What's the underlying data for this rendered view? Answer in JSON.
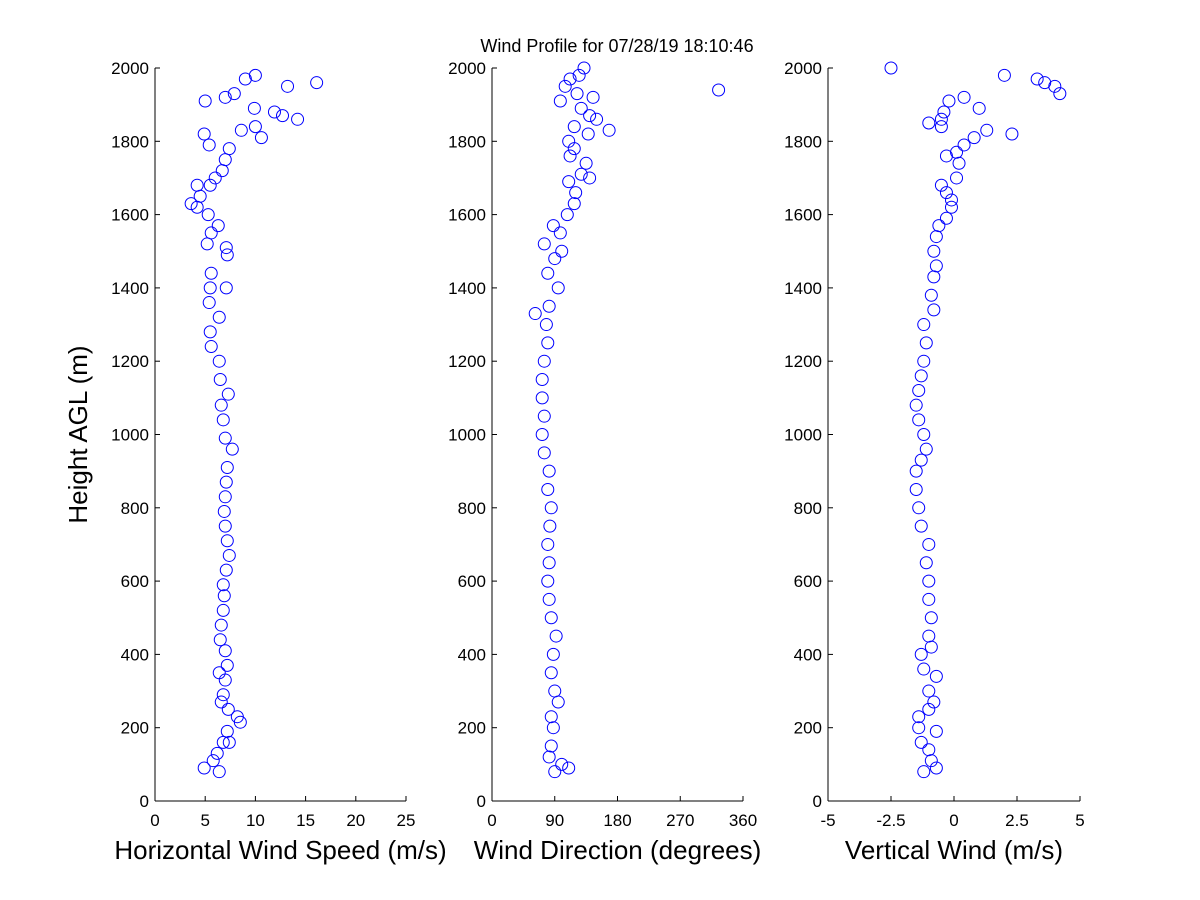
{
  "chart_data": [
    {
      "type": "scatter",
      "title": "Wind Profile for  07/28/19 18:10:46",
      "xlabel": "Horizontal Wind Speed (m/s)",
      "ylabel": "Height AGL (m)",
      "xlim": [
        0,
        25
      ],
      "xticks": [
        0,
        5,
        10,
        15,
        20,
        25
      ],
      "ylim": [
        0,
        2000
      ],
      "yticks": [
        0,
        200,
        400,
        600,
        800,
        1000,
        1200,
        1400,
        1600,
        1800,
        2000
      ],
      "color": "#0000ff",
      "x": [
        4.9,
        6.4,
        5.8,
        6.2,
        6.8,
        7.4,
        7.2,
        8.5,
        8.2,
        7.3,
        6.6,
        6.8,
        7.0,
        6.4,
        7.2,
        7.0,
        6.5,
        6.6,
        6.8,
        6.9,
        6.8,
        7.1,
        7.4,
        7.2,
        7.0,
        6.9,
        7.0,
        7.1,
        7.2,
        7.7,
        7.0,
        6.8,
        6.6,
        7.3,
        6.5,
        6.4,
        5.6,
        5.5,
        6.4,
        5.4,
        5.5,
        7.1,
        5.6,
        7.2,
        7.1,
        5.2,
        5.6,
        6.3,
        5.3,
        4.2,
        3.6,
        4.5,
        4.2,
        5.5,
        6.0,
        6.7,
        7.0,
        5.4,
        7.4,
        4.9,
        8.6,
        10.0,
        10.6,
        14.2,
        12.7,
        11.9,
        9.9,
        5.0,
        7.0,
        7.9,
        13.2,
        9.0,
        10.0,
        16.1
      ],
      "y": [
        90,
        80,
        110,
        130,
        160,
        160,
        190,
        215,
        230,
        250,
        270,
        290,
        330,
        350,
        370,
        410,
        440,
        480,
        520,
        560,
        590,
        630,
        670,
        710,
        750,
        790,
        830,
        870,
        910,
        960,
        990,
        1040,
        1080,
        1110,
        1150,
        1200,
        1240,
        1280,
        1320,
        1360,
        1400,
        1400,
        1440,
        1490,
        1510,
        1520,
        1550,
        1570,
        1600,
        1620,
        1630,
        1650,
        1680,
        1680,
        1700,
        1720,
        1750,
        1790,
        1780,
        1820,
        1830,
        1840,
        1810,
        1860,
        1870,
        1880,
        1890,
        1910,
        1920,
        1930,
        1950,
        1970,
        1980,
        1960
      ]
    },
    {
      "type": "scatter",
      "xlabel": "Wind Direction (degrees)",
      "xlim": [
        0,
        360
      ],
      "xticks": [
        0,
        90,
        180,
        270,
        360
      ],
      "ylim": [
        0,
        2000
      ],
      "yticks": [
        0,
        200,
        400,
        600,
        800,
        1000,
        1200,
        1400,
        1600,
        1800,
        2000
      ],
      "color": "#0000ff",
      "x": [
        90,
        110,
        100,
        82,
        85,
        88,
        85,
        95,
        90,
        85,
        88,
        92,
        85,
        82,
        80,
        82,
        80,
        83,
        85,
        80,
        82,
        75,
        72,
        75,
        72,
        72,
        75,
        80,
        78,
        62,
        82,
        95,
        80,
        90,
        100,
        75,
        98,
        88,
        108,
        118,
        120,
        110,
        128,
        140,
        135,
        112,
        118,
        110,
        138,
        168,
        118,
        140,
        150,
        128,
        145,
        98,
        325,
        105,
        122,
        112,
        125,
        132
      ],
      "y": [
        80,
        90,
        100,
        120,
        150,
        200,
        230,
        270,
        300,
        350,
        400,
        450,
        500,
        550,
        600,
        650,
        700,
        750,
        800,
        850,
        900,
        950,
        1000,
        1050,
        1100,
        1150,
        1200,
        1250,
        1300,
        1330,
        1350,
        1400,
        1440,
        1480,
        1500,
        1520,
        1550,
        1570,
        1600,
        1630,
        1660,
        1690,
        1710,
        1700,
        1740,
        1760,
        1780,
        1800,
        1820,
        1830,
        1840,
        1870,
        1860,
        1890,
        1920,
        1910,
        1940,
        1950,
        1930,
        1970,
        1980,
        2000
      ]
    },
    {
      "type": "scatter",
      "xlabel": "Vertical Wind (m/s)",
      "xlim": [
        -5,
        5
      ],
      "xticks": [
        -5,
        -2.5,
        0,
        2.5,
        5
      ],
      "ylim": [
        0,
        2000
      ],
      "yticks": [
        0,
        200,
        400,
        600,
        800,
        1000,
        1200,
        1400,
        1600,
        1800,
        2000
      ],
      "color": "#0000ff",
      "x": [
        -1.2,
        -0.7,
        -0.9,
        -1.0,
        -1.3,
        -0.7,
        -1.4,
        -1.4,
        -1.0,
        -0.8,
        -1.0,
        -0.7,
        -1.2,
        -1.3,
        -0.9,
        -1.0,
        -0.9,
        -1.0,
        -1.0,
        -1.1,
        -1.0,
        -1.3,
        -1.4,
        -1.5,
        -1.5,
        -1.3,
        -1.1,
        -1.2,
        -1.4,
        -1.5,
        -1.4,
        -1.3,
        -1.2,
        -1.1,
        -1.2,
        -0.8,
        -0.9,
        -0.8,
        -0.7,
        -0.8,
        -0.7,
        -0.6,
        -0.3,
        -0.1,
        -0.1,
        -0.3,
        -0.5,
        0.1,
        0.2,
        0.1,
        0.4,
        0.8,
        -0.3,
        1.3,
        2.3,
        -1.0,
        -0.5,
        -0.5,
        -0.4,
        -0.2,
        0.4,
        1.0,
        2.0,
        3.3,
        3.6,
        4.0,
        4.2,
        -2.5
      ],
      "y": [
        80,
        90,
        110,
        140,
        160,
        190,
        200,
        230,
        250,
        270,
        300,
        340,
        360,
        400,
        420,
        450,
        500,
        550,
        600,
        650,
        700,
        750,
        800,
        850,
        900,
        930,
        960,
        1000,
        1040,
        1080,
        1120,
        1160,
        1200,
        1250,
        1300,
        1340,
        1380,
        1430,
        1460,
        1500,
        1540,
        1570,
        1590,
        1620,
        1640,
        1660,
        1680,
        1700,
        1740,
        1770,
        1790,
        1810,
        1760,
        1830,
        1820,
        1850,
        1840,
        1860,
        1880,
        1910,
        1920,
        1890,
        1980,
        1970,
        1960,
        1950,
        1930,
        2000
      ]
    }
  ]
}
